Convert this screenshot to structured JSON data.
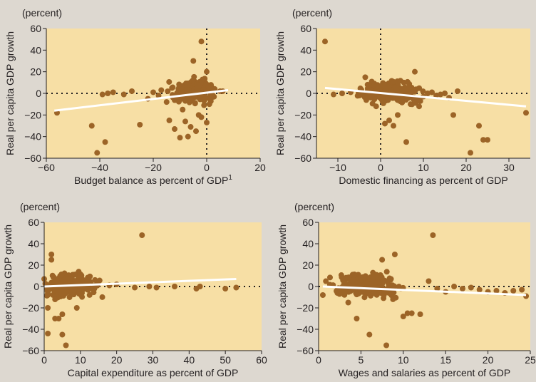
{
  "colors": {
    "page_background": "#ddd8d0",
    "plot_background": "#f7dfa5",
    "point": "#9c6427",
    "trend_line": "#ffffff",
    "axis": "#231f20"
  },
  "chart_data": [
    {
      "type": "scatter",
      "unit_label": "(percent)",
      "ylabel": "Real per capita GDP growth",
      "xlabel": "Budget balance as percent of GDP",
      "xlabel_superscript": "1",
      "xlim": [
        -60,
        20
      ],
      "ylim": [
        -60,
        60
      ],
      "xticks": [
        -60,
        -40,
        -20,
        0,
        20
      ],
      "yticks": [
        -60,
        -40,
        -20,
        0,
        20,
        40,
        60
      ],
      "reference_lines": {
        "x": 0,
        "y": 0,
        "style": "dotted"
      },
      "trend": {
        "x": [
          -57,
          8
        ],
        "y": [
          -16,
          3
        ]
      },
      "seed": 11,
      "highlight_points": {
        "x": [
          -56,
          -43,
          -41,
          -38,
          -35,
          -31,
          -28,
          -20,
          -18,
          -17,
          -15,
          -14,
          -12,
          -10,
          -8,
          -6,
          -4,
          -3,
          -2,
          -1,
          0,
          1,
          3,
          5,
          6,
          -39,
          -37,
          -25,
          -22,
          -13,
          -9,
          -7,
          -5,
          -2,
          0,
          -1
        ],
        "y": [
          -18,
          -30,
          -55,
          -45,
          1,
          -1,
          2,
          1,
          -2,
          3,
          -8,
          -25,
          -33,
          -41,
          -26,
          -31,
          -35,
          -20,
          -22,
          -11,
          -27,
          -10,
          4,
          2,
          2,
          -1,
          0,
          -29,
          -5,
          5,
          -15,
          -40,
          30,
          48,
          20,
          0
        ]
      },
      "cluster": {
        "n": 240,
        "x_center": -5,
        "x_spread": 3.5,
        "y_center": 1,
        "y_spread": 5
      }
    },
    {
      "type": "scatter",
      "unit_label": "(percent)",
      "ylabel": "Real per capita GDP growth",
      "xlabel": "Domestic financing as percent of GDP",
      "xlim": [
        -15,
        35
      ],
      "ylim": [
        -60,
        60
      ],
      "xticks": [
        -10,
        0,
        10,
        20,
        30
      ],
      "yticks": [
        -60,
        -40,
        -20,
        0,
        20,
        40,
        60
      ],
      "reference_lines": {
        "x": 0,
        "y": 0,
        "style": "dotted"
      },
      "trend": {
        "x": [
          -13,
          34
        ],
        "y": [
          5,
          -12
        ]
      },
      "seed": 23,
      "highlight_points": {
        "x": [
          -13,
          -11,
          -9,
          -7,
          -5,
          -4,
          -2,
          8,
          9,
          10,
          11,
          12,
          13,
          14,
          15,
          16,
          17,
          18,
          21,
          23,
          24,
          25,
          34,
          6,
          3,
          1,
          2,
          4,
          7
        ],
        "y": [
          48,
          -1,
          0,
          1,
          -2,
          0,
          1,
          20,
          -12,
          -3,
          0,
          1,
          -2,
          -1,
          0,
          -4,
          -20,
          2,
          -55,
          -30,
          -43,
          -43,
          -18,
          -45,
          -30,
          -28,
          -25,
          -20,
          -10
        ]
      },
      "cluster": {
        "n": 230,
        "x_center": 2,
        "x_spread": 3.2,
        "y_center": 1,
        "y_spread": 5
      }
    },
    {
      "type": "scatter",
      "unit_label": "(percent)",
      "ylabel": "Real per capita GDP growth",
      "xlabel": "Capital expenditure as percent of GDP",
      "xlim": [
        0,
        60
      ],
      "ylim": [
        -60,
        60
      ],
      "xticks": [
        0,
        10,
        20,
        30,
        40,
        50,
        60
      ],
      "yticks": [
        -60,
        -40,
        -20,
        0,
        20,
        40,
        60
      ],
      "reference_lines": {
        "y": 0,
        "style": "dotted"
      },
      "trend": {
        "x": [
          0,
          53
        ],
        "y": [
          0,
          7
        ]
      },
      "seed": 37,
      "highlight_points": {
        "x": [
          1,
          1,
          2,
          2,
          3,
          4,
          5,
          6,
          27,
          42,
          43,
          50,
          53,
          31,
          29,
          36,
          25,
          20,
          18,
          1,
          3,
          5,
          7,
          9
        ],
        "y": [
          -44,
          -20,
          30,
          25,
          -30,
          -30,
          -45,
          -55,
          48,
          -2,
          0,
          -2,
          -1,
          -1,
          0,
          0,
          -1,
          2,
          1,
          -8,
          -12,
          -26,
          -10,
          -20
        ]
      },
      "cluster": {
        "n": 230,
        "x_center": 7,
        "x_spread": 3.5,
        "y_center": 1,
        "y_spread": 5
      }
    },
    {
      "type": "scatter",
      "unit_label": "(percent)",
      "ylabel": "Real per capita GDP growth",
      "xlabel": "Wages and salaries as percent of GDP",
      "xlim": [
        0,
        25
      ],
      "ylim": [
        -60,
        60
      ],
      "xticks": [
        0,
        5,
        10,
        15,
        20,
        25
      ],
      "yticks": [
        -60,
        -40,
        -20,
        0,
        20,
        40,
        60
      ],
      "reference_lines": {
        "y": 0,
        "style": "dotted"
      },
      "trend": {
        "x": [
          0.5,
          24.5
        ],
        "y": [
          0,
          -8
        ]
      },
      "seed": 51,
      "highlight_points": {
        "x": [
          0.5,
          6,
          8,
          9,
          10,
          11,
          12,
          13,
          14,
          15,
          16,
          17,
          18,
          19,
          20,
          21,
          22,
          23,
          24,
          24.5,
          13.5,
          7.5,
          4.5,
          3.5,
          10.5
        ],
        "y": [
          -8,
          -45,
          -55,
          30,
          -28,
          -25,
          -26,
          5,
          -2,
          -5,
          0,
          -2,
          -1,
          -3,
          -5,
          -4,
          -6,
          -4,
          -3,
          -9,
          48,
          25,
          -30,
          -15,
          -25
        ]
      },
      "cluster": {
        "n": 230,
        "x_center": 5.5,
        "x_spread": 1.8,
        "y_center": 1,
        "y_spread": 5
      }
    }
  ]
}
